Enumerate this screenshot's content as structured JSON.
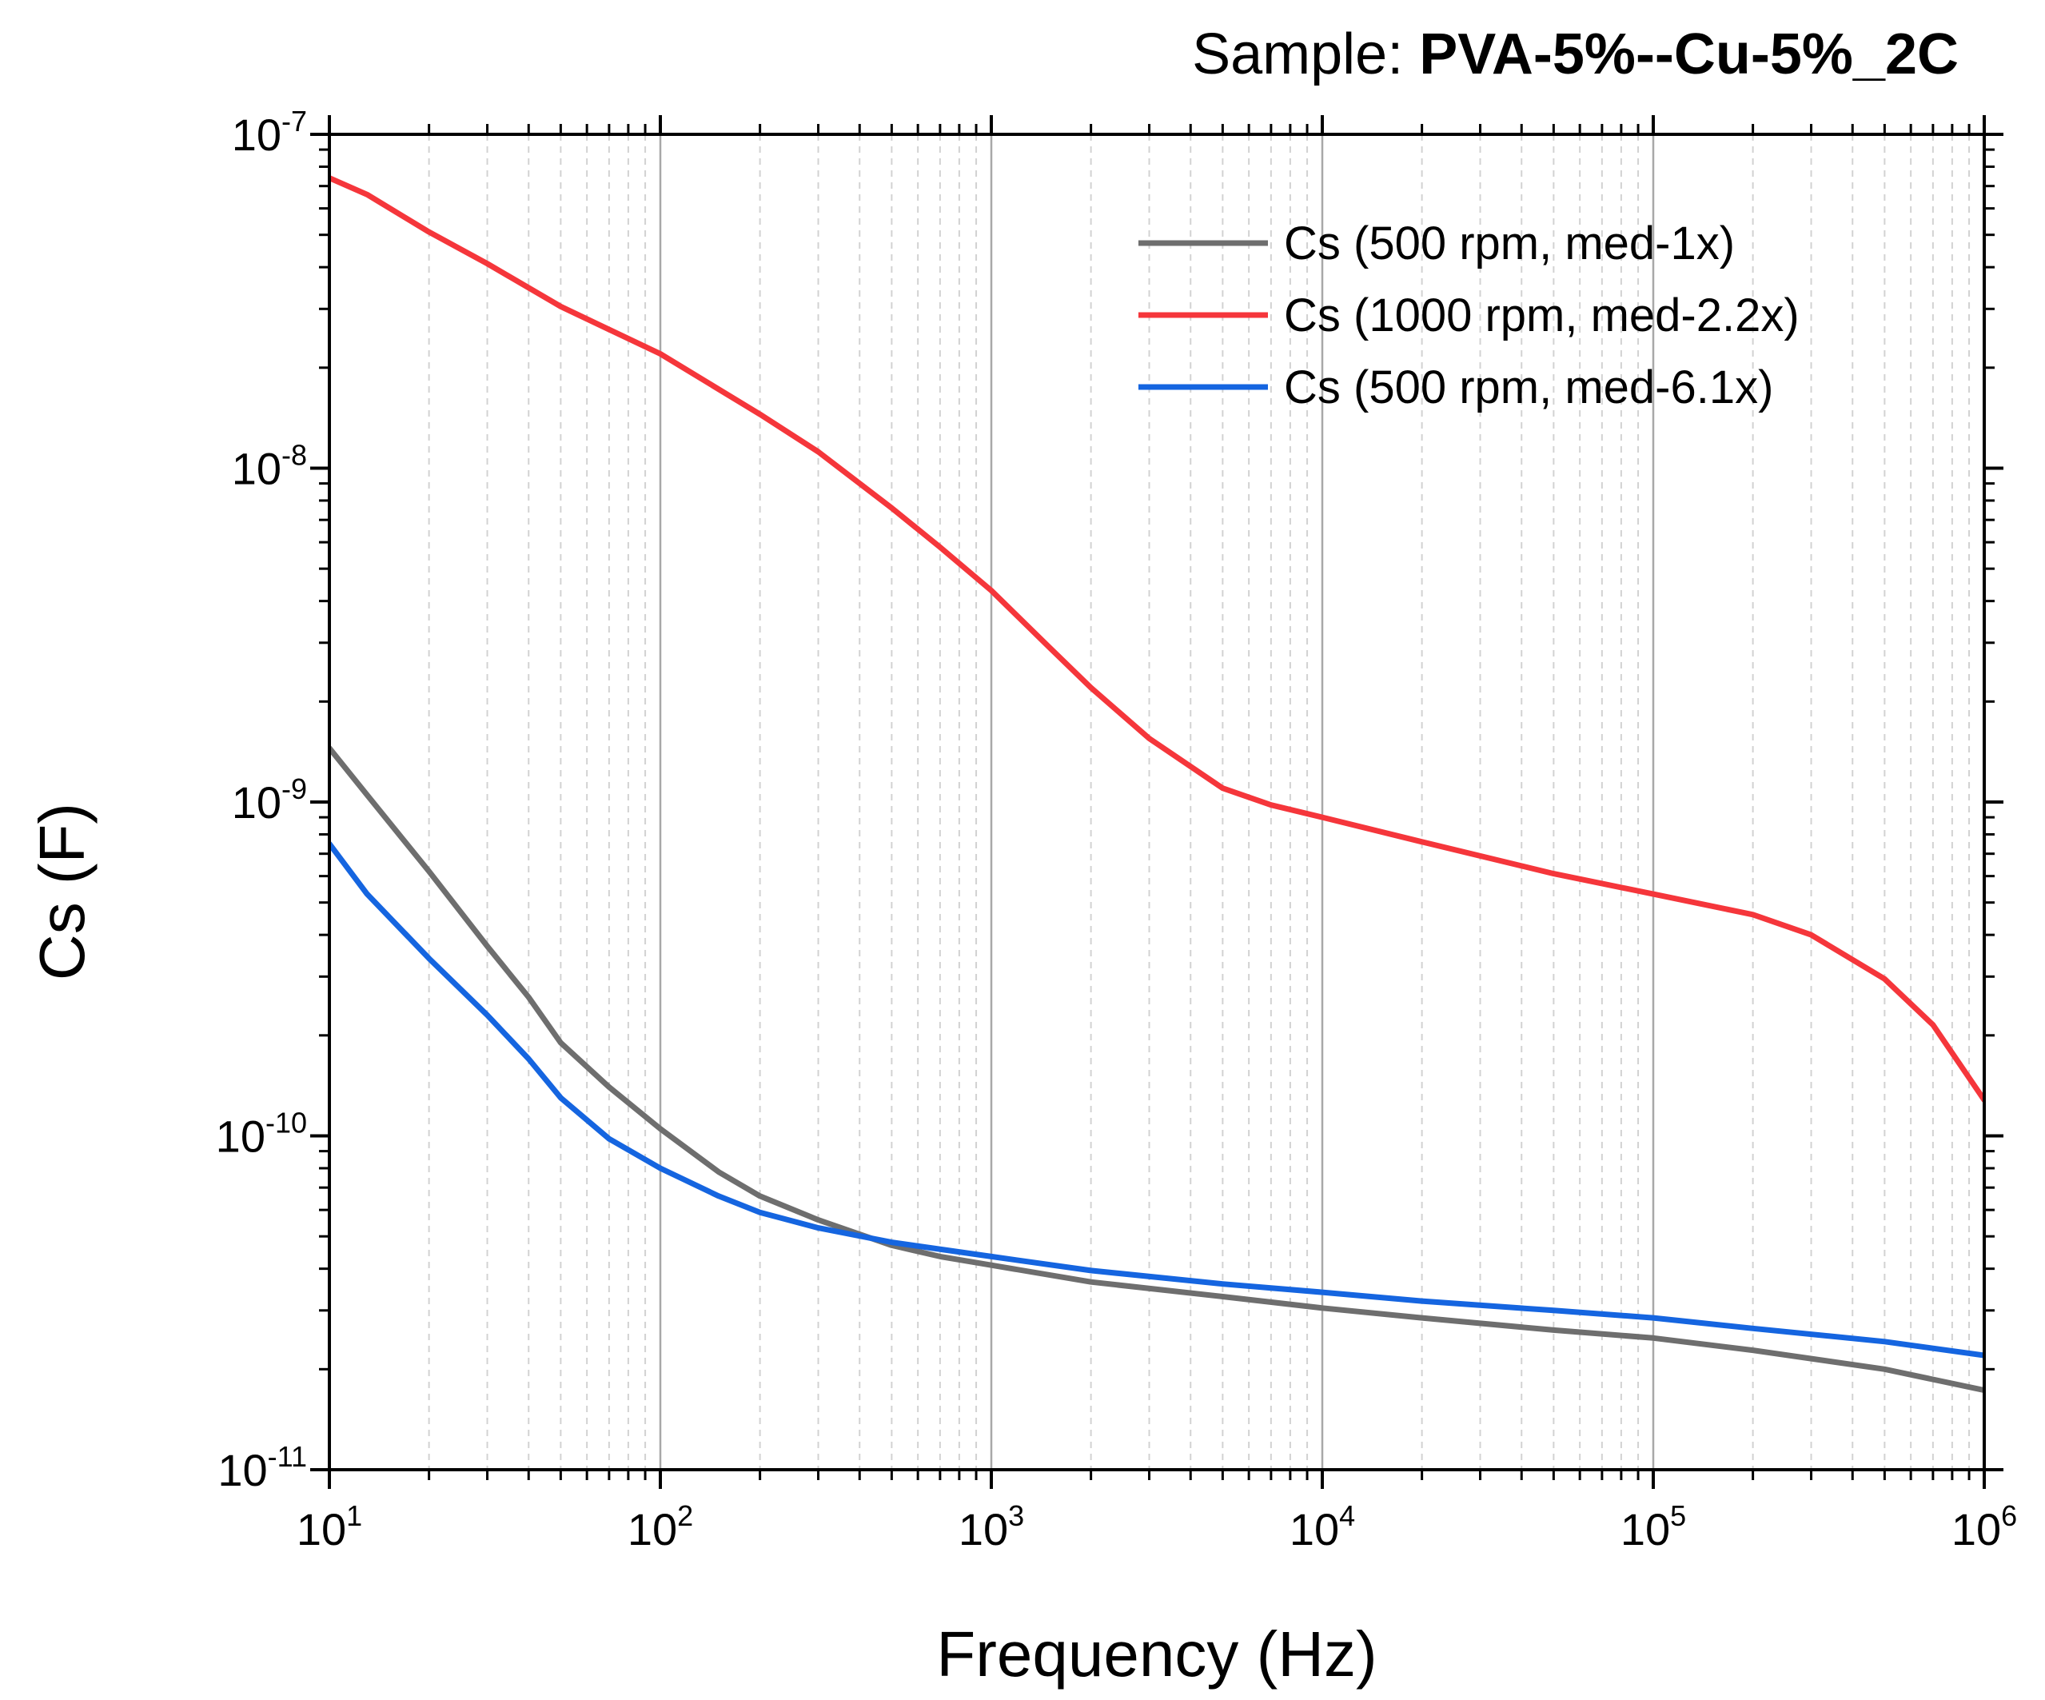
{
  "chart_data": {
    "type": "line",
    "title_prefix": "Sample: ",
    "title_bold": "PVA-5%--Cu-5%_2C",
    "xlabel": "Frequency (Hz)",
    "ylabel": "Cs (F)",
    "x_scale": "log",
    "y_scale": "log",
    "xlim": [
      10,
      1000000
    ],
    "ylim": [
      1e-11,
      1e-07
    ],
    "grid": "vertical major and minor",
    "legend_position": "top-right",
    "x_ticks": [
      {
        "base": "10",
        "exp": "1"
      },
      {
        "base": "10",
        "exp": "2"
      },
      {
        "base": "10",
        "exp": "3"
      },
      {
        "base": "10",
        "exp": "4"
      },
      {
        "base": "10",
        "exp": "5"
      },
      {
        "base": "10",
        "exp": "6"
      }
    ],
    "y_ticks": [
      {
        "base": "10",
        "exp": "-11"
      },
      {
        "base": "10",
        "exp": "-10"
      },
      {
        "base": "10",
        "exp": "-9"
      },
      {
        "base": "10",
        "exp": "-8"
      },
      {
        "base": "10",
        "exp": "-7"
      }
    ],
    "series": [
      {
        "name": "Cs (500 rpm, med-1x)",
        "color": "#6e6e6e",
        "x": [
          10,
          13,
          20,
          30,
          40,
          50,
          70,
          100,
          150,
          200,
          300,
          500,
          700,
          1000,
          2000,
          5000,
          10000,
          20000,
          50000,
          100000,
          200000,
          500000,
          1000000
        ],
        "y": [
          1.45e-09,
          1.05e-09,
          6.2e-10,
          3.7e-10,
          2.6e-10,
          1.9e-10,
          1.4e-10,
          1.05e-10,
          7.8e-11,
          6.6e-11,
          5.6e-11,
          4.7e-11,
          4.35e-11,
          4.1e-11,
          3.65e-11,
          3.3e-11,
          3.05e-11,
          2.85e-11,
          2.62e-11,
          2.48e-11,
          2.28e-11,
          2e-11,
          1.73e-11
        ]
      },
      {
        "name": "Cs (1000 rpm, med-2.2x)",
        "color": "#f5363b",
        "x": [
          10,
          13,
          20,
          30,
          50,
          100,
          200,
          300,
          500,
          700,
          1000,
          1500,
          2000,
          3000,
          5000,
          7000,
          10000,
          20000,
          50000,
          100000,
          200000,
          300000,
          500000,
          700000,
          1000000
        ],
        "y": [
          7.4e-08,
          6.6e-08,
          5.1e-08,
          4.1e-08,
          3.05e-08,
          2.2e-08,
          1.45e-08,
          1.12e-08,
          7.6e-09,
          5.8e-09,
          4.3e-09,
          2.9e-09,
          2.2e-09,
          1.55e-09,
          1.1e-09,
          9.8e-10,
          9e-10,
          7.6e-10,
          6.1e-10,
          5.3e-10,
          4.6e-10,
          4e-10,
          2.95e-10,
          2.15e-10,
          1.28e-10
        ]
      },
      {
        "name": "Cs (500 rpm, med-6.1x)",
        "color": "#1565e0",
        "x": [
          10,
          13,
          20,
          30,
          40,
          50,
          70,
          100,
          150,
          200,
          300,
          500,
          1000,
          2000,
          5000,
          10000,
          20000,
          50000,
          100000,
          200000,
          500000,
          1000000
        ],
        "y": [
          7.5e-10,
          5.3e-10,
          3.4e-10,
          2.3e-10,
          1.7e-10,
          1.3e-10,
          9.8e-11,
          8e-11,
          6.6e-11,
          5.9e-11,
          5.3e-11,
          4.8e-11,
          4.35e-11,
          3.95e-11,
          3.6e-11,
          3.4e-11,
          3.2e-11,
          3e-11,
          2.85e-11,
          2.65e-11,
          2.42e-11,
          2.2e-11
        ]
      }
    ]
  }
}
